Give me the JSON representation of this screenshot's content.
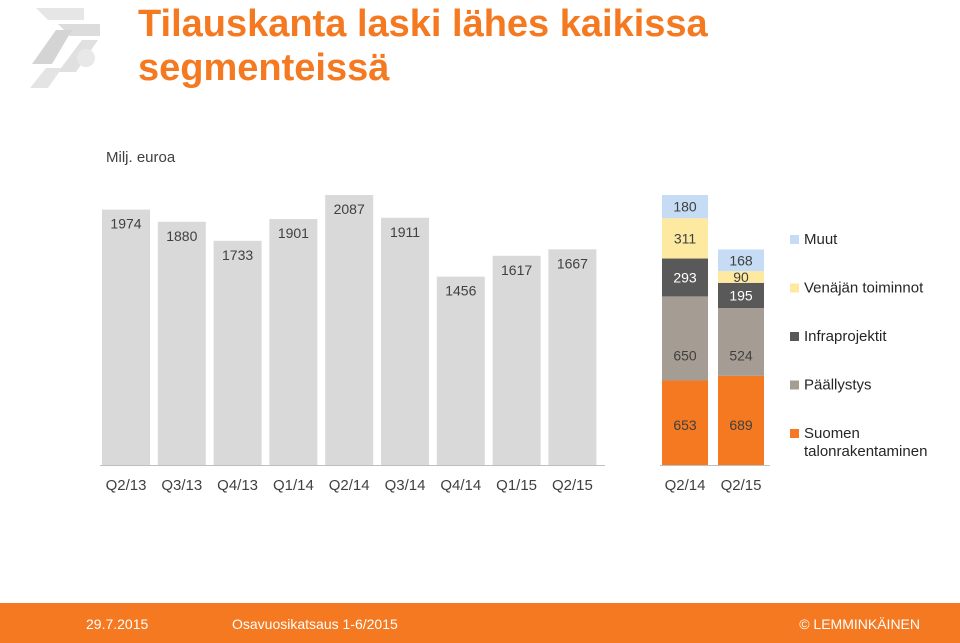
{
  "title": "Tilauskanta laski lähes kaikissa segmenteissä",
  "unit_label": "Milj. euroa",
  "footer": {
    "date": "29.7.2015",
    "presentation": "Osavuosikatsaus 1-6/2015",
    "copyright": "© LEMMINKÄINEN"
  },
  "colors": {
    "accent": "#f47920",
    "total_bar": "#d9d9d9",
    "Suomen talonrakentaminen": "#f47920",
    "Päällystys": "#a59d94",
    "Infraprojektit": "#595959",
    "Venäjän toiminnot": "#fdeaa0",
    "Muut": "#c6dcf4"
  },
  "chart_data": [
    {
      "type": "bar",
      "categories": [
        "Q2/13",
        "Q3/13",
        "Q4/13",
        "Q1/14",
        "Q2/14",
        "Q3/14",
        "Q4/14",
        "Q1/15",
        "Q2/15"
      ],
      "values": [
        1974,
        1880,
        1733,
        1901,
        2087,
        1911,
        1456,
        1617,
        1667
      ],
      "ylim": [
        0,
        2100
      ]
    },
    {
      "type": "bar",
      "stacked": true,
      "categories": [
        "Q2/14",
        "Q2/15"
      ],
      "series": [
        {
          "name": "Suomen talonrakentaminen",
          "values": [
            653,
            689
          ]
        },
        {
          "name": "Päällystys",
          "values": [
            650,
            524
          ]
        },
        {
          "name": "Infraprojektit",
          "values": [
            293,
            195
          ]
        },
        {
          "name": "Venäjän toiminnot",
          "values": [
            311,
            90
          ]
        },
        {
          "name": "Muut",
          "values": [
            180,
            168
          ]
        }
      ],
      "legend": "right",
      "ylim": [
        0,
        2100
      ]
    }
  ]
}
